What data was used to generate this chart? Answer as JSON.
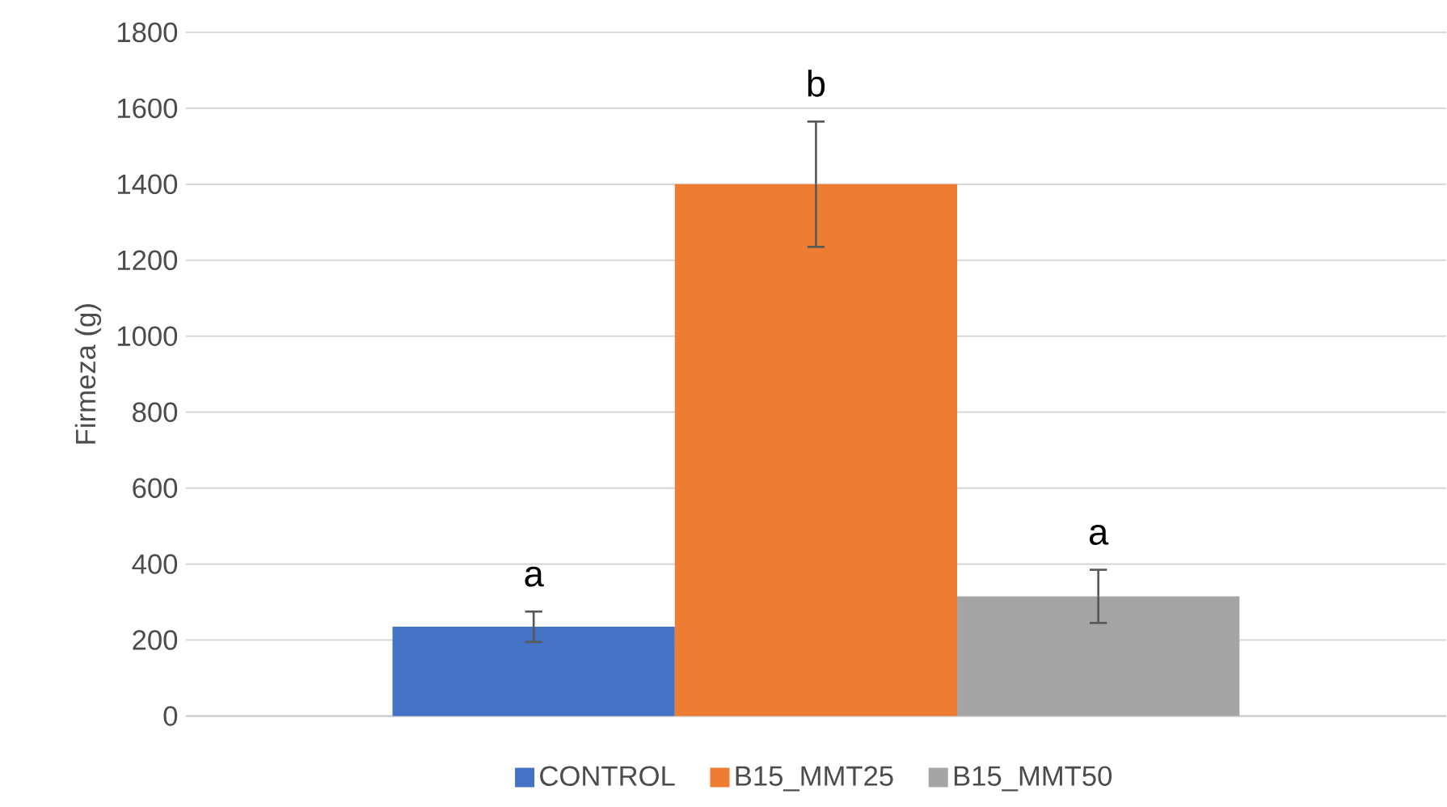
{
  "chart_data": {
    "type": "bar",
    "ylabel": "Firmeza (g)",
    "categories": [
      null
    ],
    "series": [
      {
        "name": "CONTROL",
        "color": "#4472c4",
        "values": [
          235
        ],
        "errors": [
          40
        ]
      },
      {
        "name": "B15_MMT25",
        "color": "#ed7d31",
        "values": [
          1400
        ],
        "errors": [
          165
        ]
      },
      {
        "name": "B15_MMT50",
        "color": "#a5a5a5",
        "values": [
          315
        ],
        "errors": [
          70
        ]
      }
    ],
    "annotations": [
      "a",
      "b",
      "a"
    ],
    "ylim": [
      0,
      1800
    ],
    "yticks": [
      0,
      200,
      400,
      600,
      800,
      1000,
      1200,
      1400,
      1600,
      1800
    ],
    "grid": "y",
    "legend": "bottom"
  }
}
